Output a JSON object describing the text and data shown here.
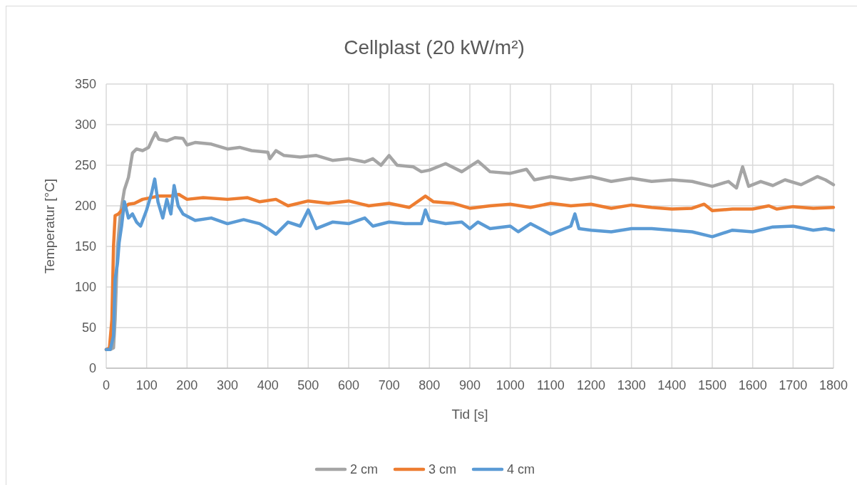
{
  "chart_data": {
    "type": "line",
    "title": "Cellplast (20 kW/m²)",
    "xlabel": "Tid [s]",
    "ylabel": "Temperatur [°C]",
    "xlim": [
      0,
      1800
    ],
    "xticks": [
      0,
      100,
      200,
      300,
      400,
      500,
      600,
      700,
      800,
      900,
      1000,
      1100,
      1200,
      1300,
      1400,
      1500,
      1600,
      1700,
      1800
    ],
    "ylim": [
      0,
      350
    ],
    "yticks": [
      0,
      50,
      100,
      150,
      200,
      250,
      300,
      350
    ],
    "grid": true,
    "legend": "bottom",
    "line_style": "solid",
    "marker": "none",
    "series": [
      {
        "name": "2 cm",
        "color": "#a5a5a5",
        "x": [
          0,
          10,
          18,
          22,
          28,
          35,
          45,
          55,
          65,
          75,
          90,
          105,
          115,
          122,
          130,
          150,
          170,
          190,
          200,
          220,
          260,
          300,
          330,
          360,
          400,
          405,
          420,
          440,
          480,
          520,
          560,
          600,
          640,
          660,
          680,
          700,
          720,
          760,
          780,
          800,
          840,
          880,
          920,
          950,
          1000,
          1040,
          1060,
          1100,
          1150,
          1200,
          1250,
          1300,
          1350,
          1400,
          1450,
          1500,
          1540,
          1560,
          1575,
          1590,
          1620,
          1650,
          1680,
          1720,
          1760,
          1780,
          1800
        ],
        "values": [
          23,
          23,
          25,
          60,
          150,
          190,
          220,
          235,
          265,
          270,
          268,
          272,
          283,
          290,
          282,
          280,
          284,
          283,
          275,
          278,
          276,
          270,
          272,
          268,
          266,
          258,
          268,
          262,
          260,
          262,
          256,
          258,
          254,
          258,
          250,
          262,
          250,
          248,
          242,
          244,
          252,
          242,
          255,
          242,
          240,
          245,
          232,
          236,
          232,
          236,
          230,
          234,
          230,
          232,
          230,
          224,
          230,
          222,
          248,
          224,
          230,
          225,
          232,
          226,
          236,
          232,
          226
        ]
      },
      {
        "name": "3 cm",
        "color": "#ed7d31",
        "x": [
          0,
          8,
          14,
          18,
          22,
          30,
          40,
          55,
          70,
          90,
          110,
          130,
          160,
          180,
          200,
          240,
          300,
          350,
          380,
          420,
          450,
          500,
          550,
          600,
          650,
          700,
          750,
          790,
          810,
          860,
          900,
          950,
          1000,
          1050,
          1100,
          1150,
          1200,
          1250,
          1300,
          1350,
          1400,
          1450,
          1480,
          1500,
          1550,
          1600,
          1640,
          1660,
          1700,
          1750,
          1800
        ],
        "values": [
          23,
          25,
          60,
          150,
          188,
          190,
          195,
          202,
          203,
          208,
          210,
          212,
          212,
          214,
          208,
          210,
          208,
          210,
          205,
          208,
          200,
          206,
          203,
          206,
          200,
          203,
          198,
          212,
          205,
          203,
          197,
          200,
          202,
          198,
          203,
          200,
          202,
          197,
          201,
          198,
          196,
          197,
          202,
          194,
          196,
          196,
          200,
          196,
          199,
          197,
          198
        ]
      },
      {
        "name": "4 cm",
        "color": "#5b9bd5",
        "x": [
          0,
          10,
          18,
          22,
          28,
          32,
          38,
          45,
          55,
          65,
          75,
          85,
          100,
          112,
          120,
          128,
          140,
          150,
          160,
          168,
          178,
          190,
          220,
          260,
          300,
          340,
          380,
          400,
          420,
          450,
          480,
          500,
          520,
          560,
          600,
          640,
          660,
          700,
          740,
          780,
          790,
          800,
          840,
          880,
          900,
          920,
          950,
          1000,
          1020,
          1050,
          1100,
          1150,
          1160,
          1170,
          1200,
          1250,
          1300,
          1350,
          1400,
          1450,
          1500,
          1550,
          1600,
          1650,
          1700,
          1750,
          1780,
          1800
        ],
        "values": [
          23,
          23,
          40,
          110,
          130,
          155,
          175,
          205,
          185,
          190,
          180,
          175,
          195,
          215,
          233,
          205,
          185,
          208,
          190,
          225,
          200,
          190,
          182,
          185,
          178,
          183,
          178,
          172,
          165,
          180,
          175,
          195,
          172,
          180,
          178,
          185,
          175,
          180,
          178,
          178,
          195,
          182,
          178,
          180,
          172,
          180,
          172,
          175,
          168,
          178,
          165,
          175,
          190,
          172,
          170,
          168,
          172,
          172,
          170,
          168,
          162,
          170,
          168,
          174,
          175,
          170,
          172,
          170
        ]
      }
    ]
  }
}
